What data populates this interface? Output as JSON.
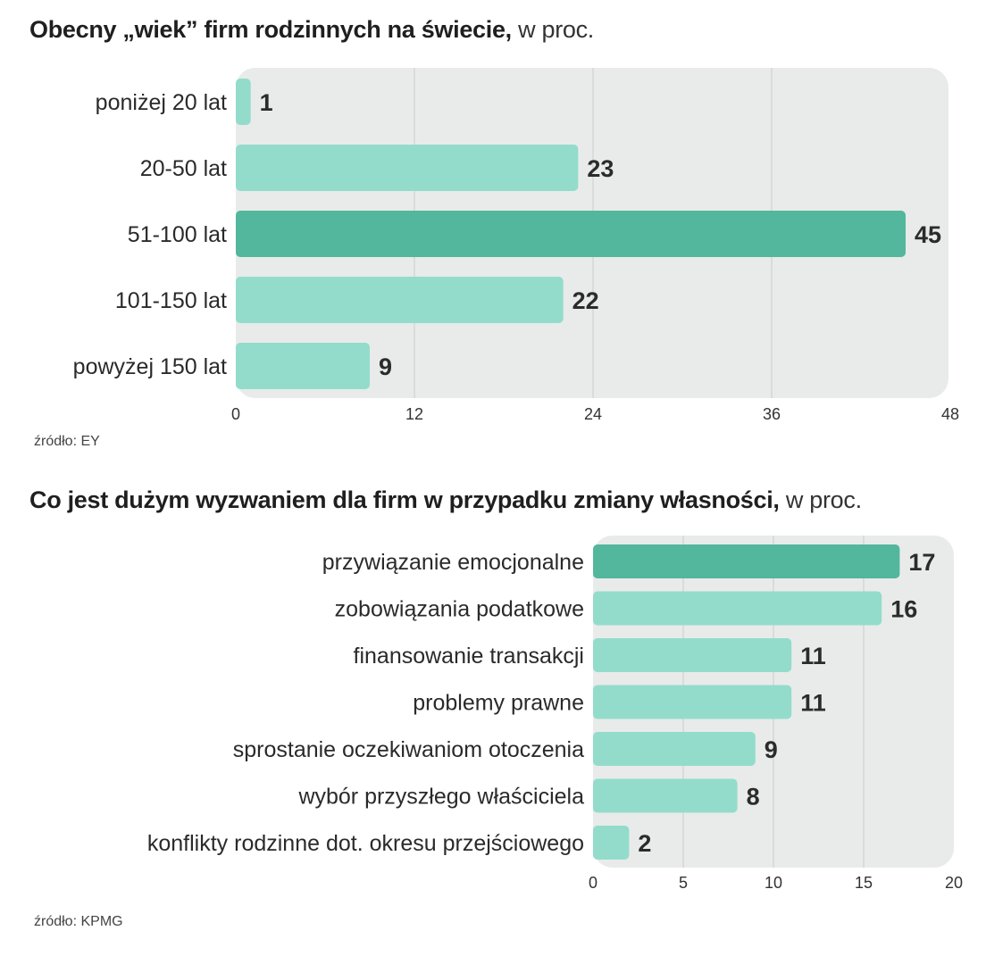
{
  "chart_data": [
    {
      "type": "bar",
      "orientation": "horizontal",
      "title": "Obecny „wiek” firm rodzinnych na świecie,",
      "unit": "w proc.",
      "categories": [
        "poniżej 20 lat",
        "20-50 lat",
        "51-100 lat",
        "101-150 lat",
        "powyżej 150 lat"
      ],
      "values": [
        1,
        23,
        45,
        22,
        9
      ],
      "highlight_index": 2,
      "xlim": [
        0,
        48
      ],
      "xticks": [
        0,
        12,
        24,
        36,
        48
      ],
      "grid": true,
      "source": "źródło: EY"
    },
    {
      "type": "bar",
      "orientation": "horizontal",
      "title": "Co jest dużym wyzwaniem dla firm w przypadku zmiany własności,",
      "unit": "w proc.",
      "categories": [
        "przywiązanie emocjonalne",
        "zobowiązania podatkowe",
        "finansowanie transakcji",
        "problemy prawne",
        "sprostanie oczekiwaniom otoczenia",
        "wybór przyszłego właściciela",
        "konflikty rodzinne dot. okresu przejściowego"
      ],
      "values": [
        17,
        16,
        11,
        11,
        9,
        8,
        2
      ],
      "highlight_index": 0,
      "xlim": [
        0,
        20
      ],
      "xticks": [
        0,
        5,
        10,
        15,
        20
      ],
      "grid": true,
      "source": "źródło: KPMG"
    }
  ],
  "colors": {
    "bar": "#93dccb",
    "highlight": "#52b79c",
    "panel": "#e8ebe9",
    "grid": "#d4d8d6"
  }
}
